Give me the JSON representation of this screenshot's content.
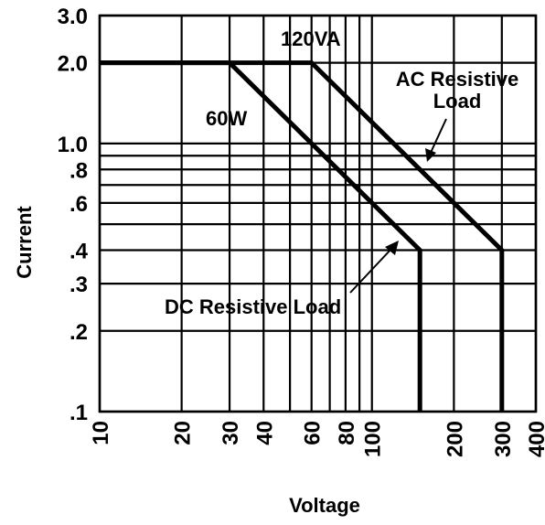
{
  "chart_data": {
    "type": "line",
    "xlabel": "Voltage",
    "ylabel": "Current",
    "xscale": "log",
    "yscale": "log",
    "xlim": [
      10,
      400
    ],
    "ylim": [
      0.1,
      3.0
    ],
    "grid": true,
    "x_ticks": [
      "10",
      "20",
      "30",
      "40",
      "60",
      "80",
      "100",
      "200",
      "300",
      "400"
    ],
    "y_ticks": [
      "3.0",
      "2.0",
      "1.0",
      ".8",
      ".6",
      ".4",
      ".3",
      ".2",
      ".1"
    ],
    "series": [
      {
        "name": "DC Resistive Load",
        "x": [
          10,
          30,
          150,
          150
        ],
        "y": [
          2.0,
          2.0,
          0.4,
          0.1
        ]
      },
      {
        "name": "AC Resistive Load",
        "x": [
          10,
          60,
          300,
          300
        ],
        "y": [
          2.0,
          2.0,
          0.4,
          0.1
        ]
      }
    ],
    "annotations": {
      "va_label": "120VA",
      "w_label": "60W",
      "ac_line1": "AC Resistive",
      "ac_line2": "Load",
      "dc_label": "DC Resistive Load"
    }
  }
}
